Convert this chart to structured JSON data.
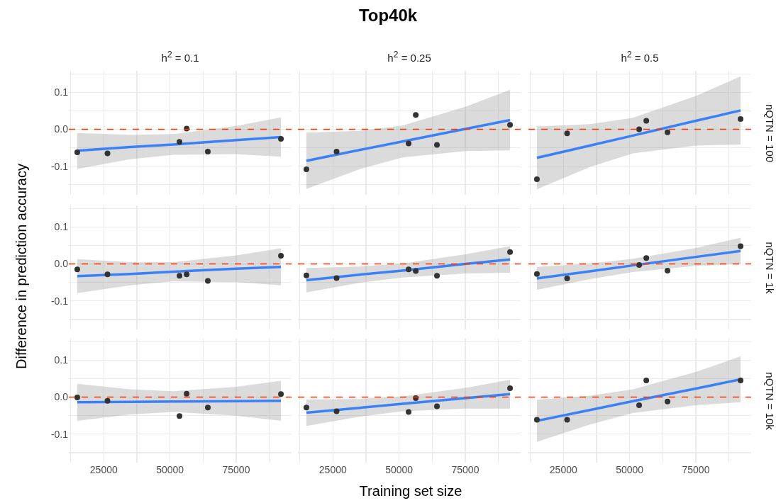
{
  "chart_data": [
    {
      "type": "scatter",
      "subtitle": "h$^{2}$ = 0.1",
      "xlim": [
        11800,
        95900
      ],
      "xticks": [
        {
          "value": 12500,
          "label": null
        },
        25000,
        {
          "value": 37500,
          "label": null
        },
        50000,
        {
          "value": 62500,
          "label": null
        },
        75000,
        {
          "value": 87500,
          "label": null
        }
      ],
      "ylim": [
        -0.177,
        0.158
      ],
      "yticks": [
        {
          "value": -0.15,
          "label": null
        },
        {
          "value": -0.1,
          "label": "-0.1"
        },
        {
          "value": -0.05,
          "label": null
        },
        {
          "value": 0,
          "label": "0.0"
        },
        {
          "value": 0.05,
          "label": null
        },
        {
          "value": 0.1,
          "label": "0.1"
        },
        {
          "value": 0.15,
          "label": null
        }
      ],
      "tick_labels": "y",
      "grid": true,
      "ref_lines": [
        {
          "axis": "y",
          "value": 0,
          "color": "#ff3300",
          "line_style": "dashed"
        }
      ],
      "series": [
        {
          "type": "scatter",
          "marker": "circle",
          "color": "#333333",
          "x": [
            15000,
            26400,
            53600,
            56300,
            64300,
            91900
          ],
          "values": [
            -0.062,
            -0.065,
            -0.034,
            0.002,
            -0.06,
            -0.026
          ]
        },
        {
          "type": "line",
          "marker": "none",
          "color": "#3a80f7",
          "x": [
            15000,
            35000,
            51250,
            75000,
            91900
          ],
          "values": [
            -0.058,
            -0.048,
            -0.041,
            -0.029,
            -0.021
          ],
          "lower": [
            -0.107,
            -0.081,
            -0.069,
            -0.067,
            -0.074
          ],
          "upper": [
            -0.01,
            -0.015,
            -0.013,
            0.009,
            0.032
          ]
        }
      ]
    },
    {
      "type": "scatter",
      "title": "Top40k",
      "subtitle": "h$^{2}$ = 0.25",
      "xlim": [
        11800,
        95900
      ],
      "xticks": [
        {
          "value": 12500,
          "label": null
        },
        25000,
        {
          "value": 37500,
          "label": null
        },
        50000,
        {
          "value": 62500,
          "label": null
        },
        75000,
        {
          "value": 87500,
          "label": null
        }
      ],
      "ylim": [
        -0.177,
        0.158
      ],
      "yticks": [
        {
          "value": -0.15,
          "label": null
        },
        {
          "value": -0.1,
          "label": null
        },
        {
          "value": -0.05,
          "label": null
        },
        {
          "value": 0,
          "label": null
        },
        {
          "value": 0.05,
          "label": null
        },
        {
          "value": 0.1,
          "label": null
        },
        {
          "value": 0.15,
          "label": null
        }
      ],
      "tick_labels": false,
      "grid": true,
      "ref_lines": [
        {
          "axis": "y",
          "value": 0,
          "color": "#ff3300",
          "line_style": "dashed"
        }
      ],
      "series": [
        {
          "type": "scatter",
          "marker": "circle",
          "color": "#333333",
          "x": [
            15000,
            26400,
            53600,
            56300,
            64300,
            91900
          ],
          "values": [
            -0.108,
            -0.06,
            -0.038,
            0.039,
            -0.042,
            0.012
          ]
        },
        {
          "type": "line",
          "marker": "none",
          "color": "#3a80f7",
          "x": [
            15000,
            35000,
            51250,
            75000,
            91900
          ],
          "values": [
            -0.085,
            -0.056,
            -0.033,
            0.001,
            0.025
          ],
          "lower": [
            -0.161,
            -0.108,
            -0.076,
            -0.059,
            -0.057
          ],
          "upper": [
            -0.009,
            -0.004,
            0.01,
            0.061,
            0.107
          ]
        }
      ]
    },
    {
      "type": "scatter",
      "subtitle": "h$^{2}$ = 0.5",
      "y2label": "nQTN = 100",
      "xlim": [
        11800,
        95900
      ],
      "xticks": [
        {
          "value": 12500,
          "label": null
        },
        25000,
        {
          "value": 37500,
          "label": null
        },
        50000,
        {
          "value": 62500,
          "label": null
        },
        75000,
        {
          "value": 87500,
          "label": null
        }
      ],
      "ylim": [
        -0.177,
        0.158
      ],
      "yticks": [
        {
          "value": -0.15,
          "label": null
        },
        {
          "value": -0.1,
          "label": null
        },
        {
          "value": -0.05,
          "label": null
        },
        {
          "value": 0,
          "label": null
        },
        {
          "value": 0.05,
          "label": null
        },
        {
          "value": 0.1,
          "label": null
        },
        {
          "value": 0.15,
          "label": null
        }
      ],
      "tick_labels": false,
      "grid": true,
      "ref_lines": [
        {
          "axis": "y",
          "value": 0,
          "color": "#ff3300",
          "line_style": "dashed"
        }
      ],
      "series": [
        {
          "type": "scatter",
          "marker": "circle",
          "color": "#333333",
          "x": [
            15000,
            26400,
            53600,
            56300,
            64300,
            91900
          ],
          "values": [
            -0.135,
            -0.011,
            0.0,
            0.023,
            -0.008,
            0.028
          ]
        },
        {
          "type": "line",
          "marker": "none",
          "color": "#3a80f7",
          "x": [
            15000,
            35000,
            51250,
            75000,
            91900
          ],
          "values": [
            -0.077,
            -0.044,
            -0.017,
            0.023,
            0.051
          ],
          "lower": [
            -0.162,
            -0.102,
            -0.065,
            -0.044,
            -0.041
          ],
          "upper": [
            0.008,
            0.014,
            0.031,
            0.09,
            0.143
          ]
        }
      ]
    },
    {
      "type": "scatter",
      "ylabel": "Difference in prediction accuracy",
      "xlim": [
        11800,
        95900
      ],
      "xticks": [
        {
          "value": 12500,
          "label": null
        },
        25000,
        {
          "value": 37500,
          "label": null
        },
        50000,
        {
          "value": 62500,
          "label": null
        },
        75000,
        {
          "value": 87500,
          "label": null
        }
      ],
      "ylim": [
        -0.177,
        0.158
      ],
      "yticks": [
        {
          "value": -0.15,
          "label": null
        },
        {
          "value": -0.1,
          "label": "-0.1"
        },
        {
          "value": -0.05,
          "label": null
        },
        {
          "value": 0,
          "label": "0.0"
        },
        {
          "value": 0.05,
          "label": null
        },
        {
          "value": 0.1,
          "label": "0.1"
        },
        {
          "value": 0.15,
          "label": null
        }
      ],
      "tick_labels": "y",
      "grid": true,
      "ref_lines": [
        {
          "axis": "y",
          "value": 0,
          "color": "#ff3300",
          "line_style": "dashed"
        }
      ],
      "series": [
        {
          "type": "scatter",
          "marker": "circle",
          "color": "#333333",
          "x": [
            15000,
            26400,
            53600,
            56300,
            64300,
            91900
          ],
          "values": [
            -0.015,
            -0.028,
            -0.032,
            -0.028,
            -0.046,
            0.022
          ]
        },
        {
          "type": "line",
          "marker": "none",
          "color": "#3a80f7",
          "x": [
            15000,
            35000,
            51250,
            75000,
            91900
          ],
          "values": [
            -0.033,
            -0.027,
            -0.021,
            -0.013,
            -0.008
          ],
          "lower": [
            -0.079,
            -0.058,
            -0.047,
            -0.049,
            -0.058
          ],
          "upper": [
            0.013,
            0.005,
            0.005,
            0.023,
            0.042
          ]
        }
      ]
    },
    {
      "type": "scatter",
      "xlim": [
        11800,
        95900
      ],
      "xticks": [
        {
          "value": 12500,
          "label": null
        },
        25000,
        {
          "value": 37500,
          "label": null
        },
        50000,
        {
          "value": 62500,
          "label": null
        },
        75000,
        {
          "value": 87500,
          "label": null
        }
      ],
      "ylim": [
        -0.177,
        0.158
      ],
      "yticks": [
        {
          "value": -0.15,
          "label": null
        },
        {
          "value": -0.1,
          "label": null
        },
        {
          "value": -0.05,
          "label": null
        },
        {
          "value": 0,
          "label": null
        },
        {
          "value": 0.05,
          "label": null
        },
        {
          "value": 0.1,
          "label": null
        },
        {
          "value": 0.15,
          "label": null
        }
      ],
      "tick_labels": false,
      "grid": true,
      "ref_lines": [
        {
          "axis": "y",
          "value": 0,
          "color": "#ff3300",
          "line_style": "dashed"
        }
      ],
      "series": [
        {
          "type": "scatter",
          "marker": "circle",
          "color": "#333333",
          "x": [
            15000,
            26400,
            53600,
            56300,
            64300,
            91900
          ],
          "values": [
            -0.031,
            -0.038,
            -0.015,
            -0.019,
            -0.032,
            0.032
          ]
        },
        {
          "type": "line",
          "marker": "none",
          "color": "#3a80f7",
          "x": [
            15000,
            35000,
            51250,
            75000,
            91900
          ],
          "values": [
            -0.044,
            -0.029,
            -0.018,
            0.0,
            0.012
          ],
          "lower": [
            -0.077,
            -0.051,
            -0.037,
            -0.026,
            -0.024
          ],
          "upper": [
            -0.011,
            -0.007,
            0.001,
            0.026,
            0.048
          ]
        }
      ]
    },
    {
      "type": "scatter",
      "y2label": "nQTN = 1k",
      "xlim": [
        11800,
        95900
      ],
      "xticks": [
        {
          "value": 12500,
          "label": null
        },
        25000,
        {
          "value": 37500,
          "label": null
        },
        50000,
        {
          "value": 62500,
          "label": null
        },
        75000,
        {
          "value": 87500,
          "label": null
        }
      ],
      "ylim": [
        -0.177,
        0.158
      ],
      "yticks": [
        {
          "value": -0.15,
          "label": null
        },
        {
          "value": -0.1,
          "label": null
        },
        {
          "value": -0.05,
          "label": null
        },
        {
          "value": 0,
          "label": null
        },
        {
          "value": 0.05,
          "label": null
        },
        {
          "value": 0.1,
          "label": null
        },
        {
          "value": 0.15,
          "label": null
        }
      ],
      "tick_labels": false,
      "grid": true,
      "ref_lines": [
        {
          "axis": "y",
          "value": 0,
          "color": "#ff3300",
          "line_style": "dashed"
        }
      ],
      "series": [
        {
          "type": "scatter",
          "marker": "circle",
          "color": "#333333",
          "x": [
            15000,
            26400,
            53600,
            56300,
            64300,
            91900
          ],
          "values": [
            -0.027,
            -0.039,
            -0.003,
            0.016,
            -0.018,
            0.048
          ]
        },
        {
          "type": "line",
          "marker": "none",
          "color": "#3a80f7",
          "x": [
            15000,
            35000,
            51250,
            75000,
            91900
          ],
          "values": [
            -0.039,
            -0.02,
            -0.004,
            0.019,
            0.035
          ],
          "lower": [
            -0.07,
            -0.041,
            -0.022,
            -0.005,
            -0.001
          ],
          "upper": [
            -0.008,
            0.001,
            0.014,
            0.043,
            0.071
          ]
        }
      ]
    },
    {
      "type": "scatter",
      "xlim": [
        11800,
        95900
      ],
      "xticks": [
        {
          "value": 12500,
          "label": null
        },
        25000,
        {
          "value": 37500,
          "label": null
        },
        50000,
        {
          "value": 62500,
          "label": null
        },
        75000,
        {
          "value": 87500,
          "label": null
        }
      ],
      "ylim": [
        -0.177,
        0.158
      ],
      "yticks": [
        {
          "value": -0.15,
          "label": null
        },
        {
          "value": -0.1,
          "label": "-0.1"
        },
        {
          "value": -0.05,
          "label": null
        },
        {
          "value": 0,
          "label": "0.0"
        },
        {
          "value": 0.05,
          "label": null
        },
        {
          "value": 0.1,
          "label": "0.1"
        },
        {
          "value": 0.15,
          "label": null
        }
      ],
      "grid": true,
      "ref_lines": [
        {
          "axis": "y",
          "value": 0,
          "color": "#ff3300",
          "line_style": "dashed"
        }
      ],
      "series": [
        {
          "type": "scatter",
          "marker": "circle",
          "color": "#333333",
          "x": [
            15000,
            26400,
            53600,
            56300,
            64300,
            91900
          ],
          "values": [
            -0.001,
            -0.01,
            -0.051,
            0.009,
            -0.028,
            0.008
          ]
        },
        {
          "type": "line",
          "marker": "none",
          "color": "#3a80f7",
          "x": [
            15000,
            35000,
            51250,
            75000,
            91900
          ],
          "values": [
            -0.014,
            -0.013,
            -0.012,
            -0.011,
            -0.01
          ],
          "lower": [
            -0.064,
            -0.047,
            -0.04,
            -0.05,
            -0.064
          ],
          "upper": [
            0.036,
            0.021,
            0.016,
            0.028,
            0.044
          ]
        }
      ]
    },
    {
      "type": "scatter",
      "xlabel": "Training set size",
      "xlim": [
        11800,
        95900
      ],
      "xticks": [
        {
          "value": 12500,
          "label": null
        },
        25000,
        {
          "value": 37500,
          "label": null
        },
        50000,
        {
          "value": 62500,
          "label": null
        },
        75000,
        {
          "value": 87500,
          "label": null
        }
      ],
      "ylim": [
        -0.177,
        0.158
      ],
      "yticks": [
        {
          "value": -0.15,
          "label": null
        },
        {
          "value": -0.1,
          "label": null
        },
        {
          "value": -0.05,
          "label": null
        },
        {
          "value": 0,
          "label": null
        },
        {
          "value": 0.05,
          "label": null
        },
        {
          "value": 0.1,
          "label": null
        },
        {
          "value": 0.15,
          "label": null
        }
      ],
      "tick_labels": "x",
      "grid": true,
      "ref_lines": [
        {
          "axis": "y",
          "value": 0,
          "color": "#ff3300",
          "line_style": "dashed"
        }
      ],
      "series": [
        {
          "type": "scatter",
          "marker": "circle",
          "color": "#333333",
          "x": [
            15000,
            26400,
            53600,
            56300,
            64300,
            91900
          ],
          "values": [
            -0.028,
            -0.038,
            -0.04,
            -0.003,
            -0.025,
            0.024
          ]
        },
        {
          "type": "line",
          "marker": "none",
          "color": "#3a80f7",
          "x": [
            15000,
            35000,
            51250,
            75000,
            91900
          ],
          "values": [
            -0.042,
            -0.029,
            -0.018,
            -0.003,
            0.008
          ],
          "lower": [
            -0.078,
            -0.053,
            -0.038,
            -0.031,
            -0.031
          ],
          "upper": [
            -0.006,
            -0.005,
            0.002,
            0.025,
            0.047
          ]
        }
      ]
    },
    {
      "type": "scatter",
      "y2label": "nQTN = 10k",
      "xlim": [
        11800,
        95900
      ],
      "xticks": [
        {
          "value": 12500,
          "label": null
        },
        25000,
        {
          "value": 37500,
          "label": null
        },
        50000,
        {
          "value": 62500,
          "label": null
        },
        75000,
        {
          "value": 87500,
          "label": null
        }
      ],
      "ylim": [
        -0.177,
        0.158
      ],
      "yticks": [
        {
          "value": -0.15,
          "label": null
        },
        {
          "value": -0.1,
          "label": null
        },
        {
          "value": -0.05,
          "label": null
        },
        {
          "value": 0,
          "label": null
        },
        {
          "value": 0.05,
          "label": null
        },
        {
          "value": 0.1,
          "label": null
        },
        {
          "value": 0.15,
          "label": null
        }
      ],
      "tick_labels": "x",
      "grid": true,
      "ref_lines": [
        {
          "axis": "y",
          "value": 0,
          "color": "#ff3300",
          "line_style": "dashed"
        }
      ],
      "series": [
        {
          "type": "scatter",
          "marker": "circle",
          "color": "#333333",
          "x": [
            15000,
            26400,
            53600,
            56300,
            64300,
            91900
          ],
          "values": [
            -0.061,
            -0.061,
            -0.022,
            0.045,
            -0.012,
            0.045
          ]
        },
        {
          "type": "line",
          "marker": "none",
          "color": "#3a80f7",
          "x": [
            15000,
            35000,
            51250,
            75000,
            91900
          ],
          "values": [
            -0.064,
            -0.035,
            -0.011,
            0.023,
            0.048
          ],
          "lower": [
            -0.121,
            -0.074,
            -0.043,
            -0.022,
            -0.014
          ],
          "upper": [
            -0.007,
            0.004,
            0.021,
            0.068,
            0.11
          ]
        }
      ]
    }
  ]
}
